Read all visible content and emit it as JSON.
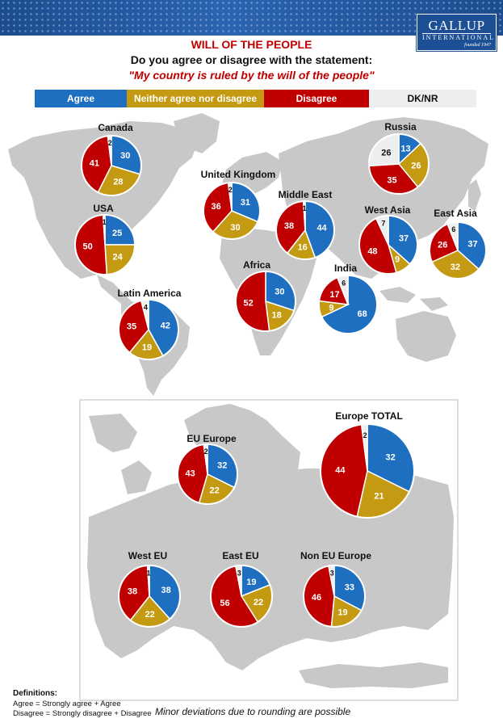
{
  "header": {
    "title": "WILL OF THE PEOPLE",
    "question": "Do you agree or disagree with the statement:",
    "statement": "\"My country is ruled by the will of the people\""
  },
  "logo": {
    "line1": "GALLUP",
    "line2": "INTERNATIONAL",
    "line3": "founded 1947"
  },
  "legend": [
    {
      "label": "Agree",
      "color": "#1f6fc1"
    },
    {
      "label": "Neither agree nor disagree",
      "color": "#c49a12"
    },
    {
      "label": "Disagree",
      "color": "#c00000"
    },
    {
      "label": "DK/NR",
      "color": "#eeeeee"
    }
  ],
  "colors": {
    "agree": "#1f6fc1",
    "neither": "#c49a12",
    "disagree": "#c00000",
    "dk": "#eeeeee",
    "map": "#c8c8c8"
  },
  "chart_data": {
    "type": "pie",
    "segments": [
      "Agree",
      "Neither agree nor disagree",
      "Disagree",
      "DK/NR"
    ],
    "pies": [
      {
        "region": "Canada",
        "agree": 30,
        "neither": 28,
        "disagree": 41,
        "dk": 2
      },
      {
        "region": "USA",
        "agree": 25,
        "neither": 24,
        "disagree": 50,
        "dk": 1
      },
      {
        "region": "Latin America",
        "agree": 42,
        "neither": 19,
        "disagree": 35,
        "dk": 4
      },
      {
        "region": "United Kingdom",
        "agree": 31,
        "neither": 30,
        "disagree": 36,
        "dk": 2
      },
      {
        "region": "Middle East",
        "agree": 44,
        "neither": 16,
        "disagree": 38,
        "dk": 1
      },
      {
        "region": "Africa",
        "agree": 30,
        "neither": 18,
        "disagree": 52,
        "dk": 0
      },
      {
        "region": "India",
        "agree": 68,
        "neither": 9,
        "disagree": 17,
        "dk": 6
      },
      {
        "region": "Russia",
        "agree": 13,
        "neither": 26,
        "disagree": 35,
        "dk": 26
      },
      {
        "region": "West Asia",
        "agree": 37,
        "neither": 9,
        "disagree": 48,
        "dk": 7
      },
      {
        "region": "East Asia",
        "agree": 37,
        "neither": 32,
        "disagree": 26,
        "dk": 6
      },
      {
        "region": "EU Europe",
        "agree": 32,
        "neither": 22,
        "disagree": 43,
        "dk": 2
      },
      {
        "region": "Europe TOTAL",
        "agree": 32,
        "neither": 21,
        "disagree": 44,
        "dk": 2
      },
      {
        "region": "West EU",
        "agree": 38,
        "neither": 22,
        "disagree": 38,
        "dk": 1
      },
      {
        "region": "East EU",
        "agree": 19,
        "neither": 22,
        "disagree": 56,
        "dk": 3
      },
      {
        "region": "Non EU Europe",
        "agree": 33,
        "neither": 19,
        "disagree": 46,
        "dk": 3
      }
    ]
  },
  "footer": {
    "definitions_title": "Definitions:",
    "def_agree": "Agree = Strongly agree + Agree",
    "def_disagree": "Disagree = Strongly disagree + Disagree",
    "note": "Minor deviations due to rounding are possible"
  }
}
